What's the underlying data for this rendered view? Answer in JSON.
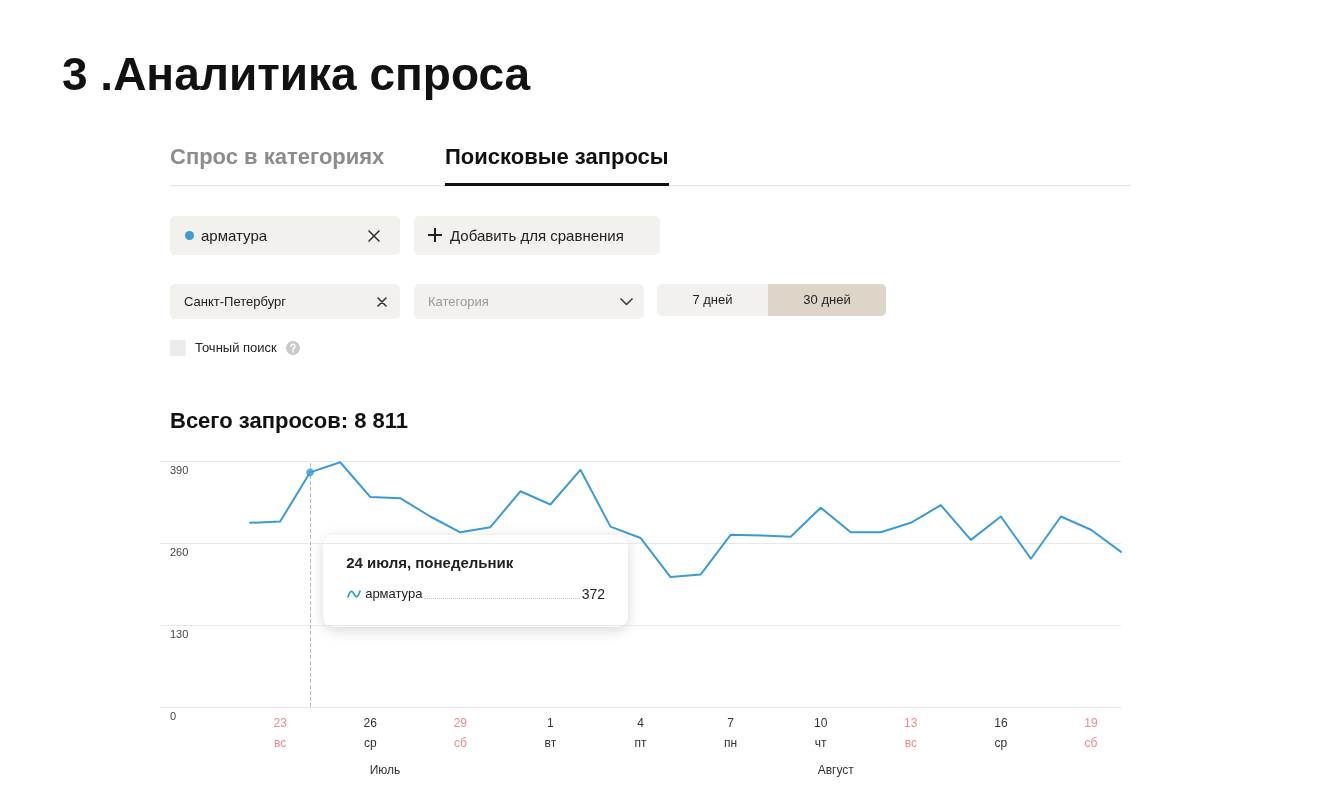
{
  "chart_data": {
    "type": "line",
    "title": "3 .Аналитика спроса",
    "subtitle": "Всего запросов: 8 811",
    "annotations": [
      "Спрос в категориях",
      "Поисковые запросы",
      "арматура",
      "Добавить для сравнения",
      "Санкт-Петербург",
      "Категория",
      "7 дней",
      "30 дней",
      "Точный поиск",
      "24 июля, понедельник",
      "372",
      "Июль",
      "Август"
    ],
    "x": [
      "--07-22",
      "--07-23",
      "--07-24",
      "--07-25",
      "--07-26",
      "--07-27",
      "--07-28",
      "--07-29",
      "--07-30",
      "--07-31",
      "--08-01",
      "--08-02",
      "--08-03",
      "--08-04",
      "--08-05",
      "--08-06",
      "--08-07",
      "--08-08",
      "--08-09",
      "--08-10",
      "--08-11",
      "--08-12",
      "--08-13",
      "--08-14",
      "--08-15",
      "--08-16",
      "--08-17",
      "--08-18",
      "--08-19",
      "--08-20"
    ],
    "series": [
      {
        "name": "арматура",
        "color": "#3b9ad9",
        "values": [
          292,
          294,
          372,
          388,
          333,
          331,
          302,
          277,
          285,
          342,
          321,
          376,
          286,
          268,
          206,
          210,
          273,
          272,
          270,
          316,
          277,
          277,
          292,
          320,
          265,
          302,
          235,
          302,
          281,
          246
        ]
      },
      {
        "type": "scatter",
        "color": "#3b9ad9",
        "marker": "circle",
        "x": [
          "--07-24"
        ],
        "values": [
          372
        ]
      }
    ],
    "xlim": [
      "--07-19",
      "--08-20"
    ],
    "xticks": [
      {
        "value": "--07-23",
        "label": "23\nвс"
      },
      {
        "value": "--07-26",
        "label": "26\nср"
      },
      {
        "value": "--07-29",
        "label": "29\nсб"
      },
      {
        "value": "--08-01",
        "label": "1\nвт"
      },
      {
        "value": "--08-04",
        "label": "4\nпт"
      },
      {
        "value": "--08-07",
        "label": "7\nпн"
      },
      {
        "value": "--08-10",
        "label": "10\nчт"
      },
      {
        "value": "--08-13",
        "label": "13\nвс"
      },
      {
        "value": "--08-16",
        "label": "16\nср"
      },
      {
        "value": "--08-19",
        "label": "19\nсб"
      }
    ],
    "ylim": [
      0,
      390
    ],
    "yticks": [
      0,
      130,
      260,
      390
    ],
    "ref_lines": [
      {
        "axis": "x",
        "value": "--07-24",
        "color": "#bbbbbb",
        "line_style": "dashed"
      }
    ],
    "grid": "y",
    "legend": "bottom left",
    "marker": "none",
    "line_style": "solid"
  }
}
